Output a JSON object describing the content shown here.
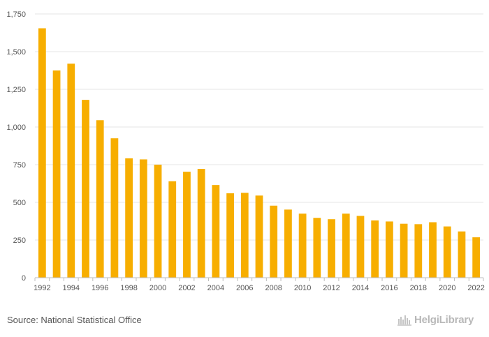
{
  "chart_data": {
    "type": "bar",
    "categories": [
      "1992",
      "1993",
      "1994",
      "1995",
      "1996",
      "1997",
      "1998",
      "1999",
      "2000",
      "2001",
      "2002",
      "2003",
      "2004",
      "2005",
      "2006",
      "2007",
      "2008",
      "2009",
      "2010",
      "2011",
      "2012",
      "2013",
      "2014",
      "2015",
      "2016",
      "2017",
      "2018",
      "2019",
      "2020",
      "2021",
      "2022"
    ],
    "values": [
      1655,
      1375,
      1420,
      1180,
      1045,
      925,
      792,
      785,
      750,
      640,
      703,
      722,
      615,
      560,
      563,
      545,
      478,
      452,
      425,
      397,
      388,
      425,
      410,
      380,
      373,
      358,
      355,
      368,
      340,
      307,
      268
    ],
    "x_tick_labels": [
      "1992",
      "1994",
      "1996",
      "1998",
      "2000",
      "2002",
      "2004",
      "2006",
      "2008",
      "2010",
      "2012",
      "2014",
      "2016",
      "2018",
      "2020",
      "2022"
    ],
    "y_ticks": [
      0,
      250,
      500,
      750,
      1000,
      1250,
      1500,
      1750
    ],
    "y_tick_labels": [
      "0",
      "250",
      "500",
      "750",
      "1,000",
      "1,250",
      "1,500",
      "1,750"
    ],
    "ylim": [
      0,
      1750
    ],
    "title": "",
    "xlabel": "",
    "ylabel": "",
    "grid": true,
    "bar_color": "#F7AE00",
    "grid_color": "#e6e6e6"
  },
  "footer": {
    "source": "Source: National Statistical Office",
    "logo_text": "HelgiLibrary"
  }
}
